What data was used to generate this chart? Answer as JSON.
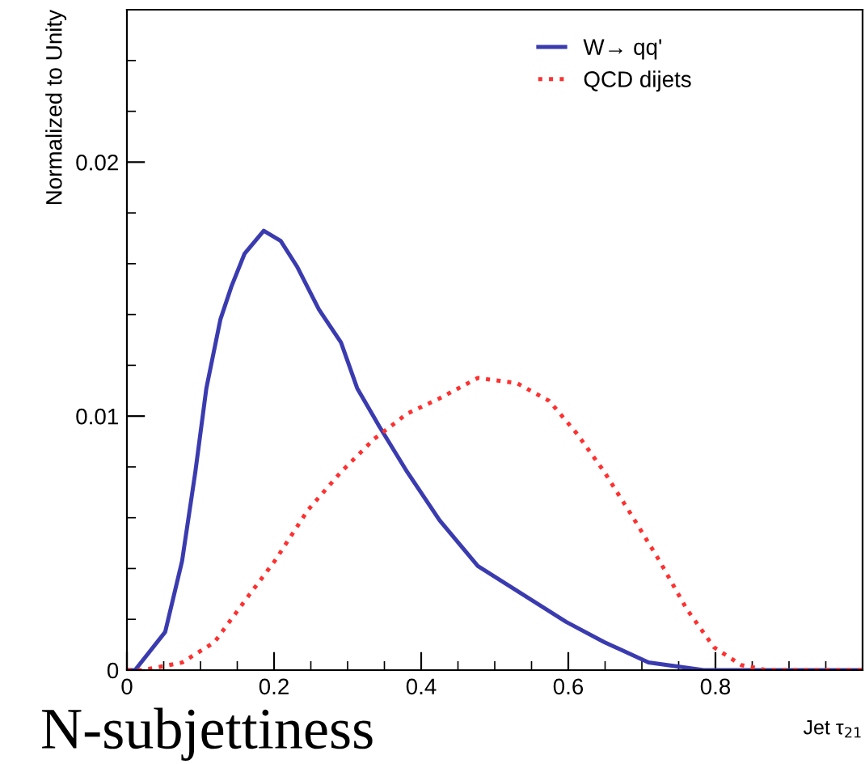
{
  "chart_data": {
    "type": "line",
    "xlabel": "Jet τ$_{21}$",
    "ylabel": "Normalized to Unity",
    "annotations": [
      "N-subjettiness"
    ],
    "xlim": [
      0,
      1
    ],
    "ylim": [
      0,
      0.026
    ],
    "xticks": [
      0,
      0.2,
      0.4,
      0.6,
      0.8
    ],
    "yticks": [
      0,
      0.01,
      0.02
    ],
    "grid": false,
    "legend": "top right",
    "marker": "none",
    "series": [
      {
        "name": "W→ qq'",
        "color": "#3b3bb0",
        "line_style": "solid",
        "x": [
          0,
          0.011,
          0.052,
          0.075,
          0.093,
          0.108,
          0.127,
          0.142,
          0.16,
          0.186,
          0.209,
          0.231,
          0.261,
          0.291,
          0.313,
          0.343,
          0.381,
          0.425,
          0.477,
          0.537,
          0.597,
          0.649,
          0.709,
          0.784,
          0.85,
          1.0
        ],
        "values": [
          0,
          0,
          0.0015,
          0.0043,
          0.0078,
          0.0111,
          0.0138,
          0.0151,
          0.0164,
          0.0173,
          0.0169,
          0.0159,
          0.0142,
          0.0129,
          0.0111,
          0.0096,
          0.0078,
          0.0059,
          0.0041,
          0.003,
          0.0019,
          0.0011,
          0.0003,
          0,
          0,
          0
        ]
      },
      {
        "name": "QCD dijets",
        "color": "#ff3030",
        "line_style": "dotted",
        "x": [
          0,
          0.022,
          0.075,
          0.119,
          0.157,
          0.201,
          0.246,
          0.291,
          0.336,
          0.381,
          0.425,
          0.477,
          0.53,
          0.574,
          0.612,
          0.649,
          0.686,
          0.724,
          0.761,
          0.798,
          0.835,
          0.87,
          1.0
        ],
        "values": [
          0,
          0,
          0.0003,
          0.0011,
          0.0026,
          0.0043,
          0.0063,
          0.0078,
          0.0091,
          0.0101,
          0.0107,
          0.0115,
          0.0113,
          0.0106,
          0.0093,
          0.0078,
          0.0061,
          0.0043,
          0.0024,
          0.0009,
          0.0002,
          0,
          0
        ]
      }
    ]
  }
}
